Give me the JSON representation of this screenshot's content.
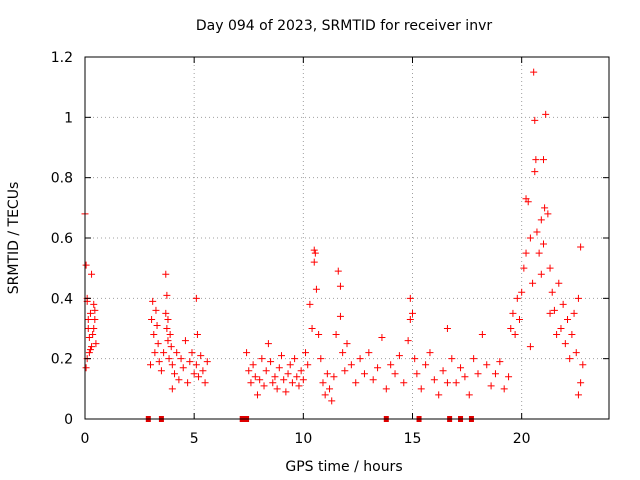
{
  "chart_data": {
    "type": "scatter",
    "title": "Day 094 of 2023, SRMTID for receiver invr",
    "xlabel": "GPS time / hours",
    "ylabel": "SRMTID / TECUs",
    "xlim": [
      0,
      24
    ],
    "ylim": [
      0,
      1.2
    ],
    "xticks": [
      0,
      5,
      10,
      15,
      20
    ],
    "xtick_labels": [
      "0",
      "5",
      "10",
      "15",
      "20"
    ],
    "yticks": [
      0,
      0.2,
      0.4,
      0.6,
      0.8,
      1.0,
      1.2
    ],
    "ytick_labels": [
      "0",
      "0.2",
      "0.4",
      "0.6",
      "0.8",
      "1",
      "1.2"
    ],
    "grid": true,
    "marker": "+",
    "color": "#ff0000",
    "series": [
      {
        "name": "SRMTID",
        "x": [
          0.0,
          0.05,
          0.1,
          0.15,
          0.2,
          0.25,
          0.3,
          0.35,
          0.4,
          0.45,
          0.5,
          0.05,
          0.1,
          0.15,
          0.2,
          0.3,
          0.4,
          0.45,
          0.1,
          0.25,
          3.0,
          3.05,
          3.1,
          3.15,
          3.2,
          3.25,
          3.3,
          3.35,
          3.4,
          3.5,
          3.6,
          3.7,
          3.75,
          3.8,
          3.85,
          3.9,
          3.95,
          4.0,
          4.1,
          4.2,
          4.3,
          4.4,
          4.5,
          4.6,
          4.7,
          4.8,
          4.9,
          5.0,
          5.1,
          5.2,
          5.3,
          5.4,
          5.5,
          5.6,
          3.7,
          3.75,
          3.8,
          4.0,
          5.1,
          5.15,
          7.4,
          7.5,
          7.6,
          7.7,
          7.8,
          7.9,
          8.0,
          8.1,
          8.2,
          8.3,
          8.4,
          8.5,
          8.6,
          8.7,
          8.8,
          8.9,
          9.0,
          9.1,
          9.2,
          9.3,
          9.4,
          9.5,
          9.6,
          9.7,
          9.8,
          9.9,
          10.0,
          10.1,
          10.2,
          10.3,
          10.4,
          10.5,
          10.55,
          10.6,
          10.7,
          10.8,
          10.9,
          11.0,
          11.1,
          11.2,
          11.3,
          11.4,
          11.5,
          11.6,
          11.7,
          11.8,
          11.9,
          12.0,
          12.2,
          12.4,
          12.6,
          12.8,
          13.0,
          13.2,
          13.4,
          13.6,
          13.8,
          14.0,
          14.2,
          14.4,
          14.6,
          14.8,
          14.9,
          15.0,
          15.1,
          15.2,
          15.4,
          15.6,
          15.8,
          16.0,
          16.2,
          16.4,
          16.6,
          16.8,
          17.0,
          17.2,
          17.4,
          17.6,
          17.8,
          18.0,
          18.2,
          18.4,
          18.6,
          18.8,
          19.0,
          19.2,
          19.4,
          19.5,
          19.6,
          19.7,
          19.8,
          19.9,
          20.0,
          20.1,
          20.2,
          20.3,
          20.4,
          20.5,
          20.55,
          20.6,
          20.7,
          20.8,
          20.9,
          21.0,
          21.1,
          21.2,
          21.3,
          21.4,
          21.5,
          21.6,
          21.7,
          21.8,
          21.9,
          22.0,
          22.1,
          22.2,
          22.3,
          22.4,
          22.5,
          22.6,
          22.7,
          22.8,
          20.6,
          20.65,
          20.9,
          21.05,
          21.0,
          21.3,
          20.4,
          20.2,
          22.7,
          22.6,
          11.7,
          10.5,
          14.9,
          16.6
        ],
        "values": [
          0.68,
          0.51,
          0.39,
          0.3,
          0.22,
          0.35,
          0.48,
          0.28,
          0.38,
          0.33,
          0.25,
          0.17,
          0.2,
          0.33,
          0.27,
          0.24,
          0.3,
          0.36,
          0.4,
          0.23,
          0.18,
          0.33,
          0.39,
          0.28,
          0.22,
          0.36,
          0.31,
          0.25,
          0.19,
          0.16,
          0.22,
          0.35,
          0.3,
          0.26,
          0.2,
          0.28,
          0.24,
          0.18,
          0.15,
          0.22,
          0.13,
          0.2,
          0.17,
          0.26,
          0.12,
          0.19,
          0.22,
          0.15,
          0.18,
          0.14,
          0.21,
          0.16,
          0.12,
          0.19,
          0.48,
          0.41,
          0.33,
          0.1,
          0.4,
          0.28,
          0.22,
          0.16,
          0.12,
          0.18,
          0.14,
          0.08,
          0.13,
          0.2,
          0.11,
          0.16,
          0.25,
          0.19,
          0.12,
          0.14,
          0.1,
          0.17,
          0.21,
          0.13,
          0.09,
          0.15,
          0.18,
          0.12,
          0.2,
          0.14,
          0.11,
          0.16,
          0.13,
          0.22,
          0.18,
          0.38,
          0.3,
          0.56,
          0.55,
          0.43,
          0.28,
          0.2,
          0.12,
          0.08,
          0.15,
          0.1,
          0.06,
          0.14,
          0.28,
          0.49,
          0.34,
          0.22,
          0.16,
          0.25,
          0.18,
          0.12,
          0.2,
          0.15,
          0.22,
          0.13,
          0.17,
          0.27,
          0.1,
          0.18,
          0.15,
          0.21,
          0.12,
          0.26,
          0.4,
          0.35,
          0.2,
          0.15,
          0.1,
          0.18,
          0.22,
          0.13,
          0.08,
          0.16,
          0.3,
          0.2,
          0.12,
          0.17,
          0.14,
          0.08,
          0.2,
          0.15,
          0.28,
          0.18,
          0.11,
          0.15,
          0.19,
          0.1,
          0.14,
          0.3,
          0.35,
          0.28,
          0.4,
          0.33,
          0.42,
          0.5,
          0.73,
          0.72,
          0.6,
          0.45,
          1.15,
          0.82,
          0.62,
          0.55,
          0.48,
          0.86,
          1.01,
          0.68,
          0.5,
          0.42,
          0.36,
          0.28,
          0.45,
          0.3,
          0.38,
          0.25,
          0.33,
          0.2,
          0.28,
          0.35,
          0.22,
          0.4,
          0.57,
          0.18,
          0.99,
          0.86,
          0.66,
          0.7,
          0.58,
          0.35,
          0.24,
          0.55,
          0.12,
          0.08,
          0.44,
          0.52,
          0.33,
          0.12
        ]
      }
    ],
    "gap_markers_x": [
      2.9,
      3.5,
      7.2,
      7.4,
      13.8,
      15.3,
      16.7,
      17.2,
      17.7
    ]
  }
}
